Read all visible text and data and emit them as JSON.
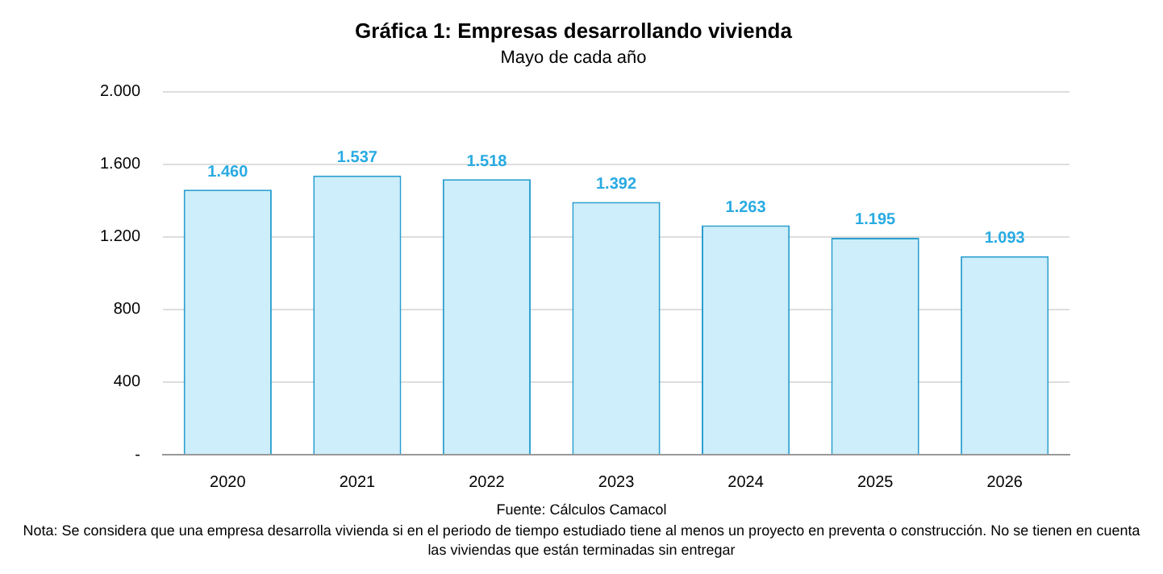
{
  "chart_data": {
    "type": "bar",
    "title": "Gráfica 1: Empresas desarrollando vivienda",
    "subtitle": "Mayo de cada año",
    "categories": [
      "2020",
      "2021",
      "2022",
      "2023",
      "2024",
      "2025",
      "2026"
    ],
    "values": [
      1460,
      1537,
      1518,
      1392,
      1263,
      1195,
      1093
    ],
    "value_labels": [
      "1.460",
      "1.537",
      "1.518",
      "1.392",
      "1.263",
      "1.195",
      "1.093"
    ],
    "color": "#cdeefa",
    "ylim": [
      0,
      2000
    ],
    "yticks": [
      {
        "value": 0,
        "label": "-"
      },
      400,
      800,
      {
        "value": 1200,
        "label": "1.200"
      },
      {
        "value": 1600,
        "label": "1.600"
      },
      {
        "value": 2000,
        "label": "2.000"
      }
    ],
    "grid": "y",
    "annotations": [
      "Fuente: Cálculos Camacol",
      "Nota: Se considera que una empresa desarrolla vivienda si en el periodo de tiempo estudiado tiene al menos un proyecto en preventa o construcción. No se tienen en cuenta las viviendas que están terminadas sin entregar"
    ]
  }
}
